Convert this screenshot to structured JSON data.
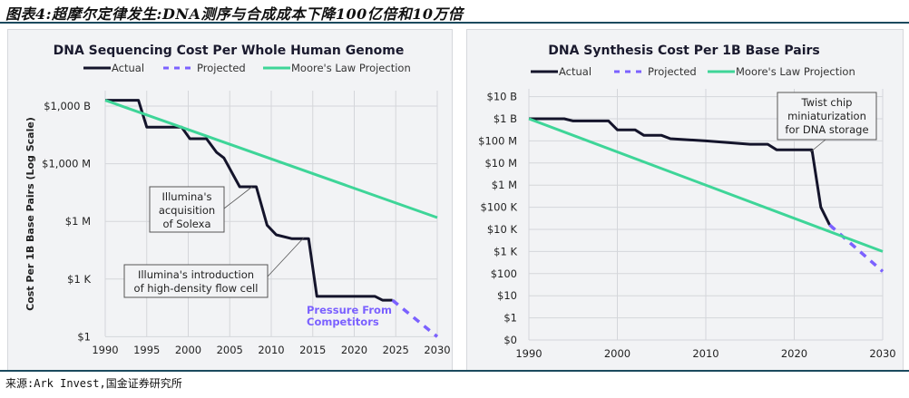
{
  "figure_title": "图表4:超摩尔定律发生:DNA测序与合成成本下降100亿倍和10万倍",
  "source": "来源:Ark Invest,国金证券研究所",
  "colors": {
    "actual": "#14142b",
    "projected": "#7b61ff",
    "moore": "#3ed598",
    "grid": "#d4d6da",
    "annotation_text": "#7b61ff"
  },
  "chart_data": [
    {
      "type": "line",
      "title": "DNA Sequencing Cost Per Whole Human Genome",
      "ylabel": "Cost Per 1B Base Pairs (Log Scale)",
      "xlabel": "",
      "y_scale": "log",
      "xlim": [
        1990,
        2030
      ],
      "ylim_log10": [
        0,
        12.4
      ],
      "x_ticks": [
        1990,
        1995,
        2000,
        2005,
        2010,
        2015,
        2020,
        2025,
        2030
      ],
      "y_ticks": [
        {
          "label": "$1,000 B",
          "log10": 12
        },
        {
          "label": "$1,000 M",
          "log10": 9
        },
        {
          "label": "$1 M",
          "log10": 6
        },
        {
          "label": "$1 K",
          "log10": 3
        },
        {
          "label": "$1",
          "log10": 0
        }
      ],
      "legend": {
        "placement": "top-center",
        "entries": [
          "Actual",
          "Projected",
          "Moore's Law Projection"
        ]
      },
      "grid": true,
      "series": [
        {
          "name": "Actual",
          "style": "solid",
          "points_log10": [
            [
              1990,
              12.3
            ],
            [
              1994,
              12.3
            ],
            [
              1995,
              10.9
            ],
            [
              1999.2,
              10.9
            ],
            [
              2000.2,
              10.3
            ],
            [
              2002.2,
              10.3
            ],
            [
              2003.4,
              9.6
            ],
            [
              2004.3,
              9.3
            ],
            [
              2006.2,
              7.8
            ],
            [
              2008.2,
              7.8
            ],
            [
              2009.5,
              5.8
            ],
            [
              2010.6,
              5.3
            ],
            [
              2012.5,
              5.1
            ],
            [
              2014.5,
              5.1
            ],
            [
              2015.5,
              2.1
            ],
            [
              2022.5,
              2.1
            ],
            [
              2023.4,
              1.9
            ],
            [
              2024.6,
              1.9
            ]
          ]
        },
        {
          "name": "Projected",
          "style": "dashed",
          "points_log10": [
            [
              2024.6,
              1.9
            ],
            [
              2030,
              0
            ]
          ]
        },
        {
          "name": "Moore's Law Projection",
          "style": "solid",
          "points_log10": [
            [
              1990,
              12.3
            ],
            [
              2030,
              6.2
            ]
          ]
        }
      ],
      "annotations": [
        {
          "text": [
            "Illumina's",
            "acquisition",
            "of Solexa"
          ],
          "target": [
            2008.2,
            7.8
          ]
        },
        {
          "text": [
            "Illumina's introduction",
            "of high-density flow cell"
          ],
          "target": [
            2014.5,
            5.1
          ]
        },
        {
          "text": [
            "Pressure From",
            "Competitors"
          ],
          "style": "colored"
        }
      ]
    },
    {
      "type": "line",
      "title": "DNA Synthesis Cost Per 1B Base Pairs",
      "y_scale": "log",
      "xlim": [
        1990,
        2030
      ],
      "x_ticks": [
        1990,
        2000,
        2010,
        2020,
        2030
      ],
      "y_ticks": [
        {
          "label": "$10 B",
          "log10": 10
        },
        {
          "label": "$1 B",
          "log10": 9
        },
        {
          "label": "$100 M",
          "log10": 8
        },
        {
          "label": "$10 M",
          "log10": 7
        },
        {
          "label": "$1 M",
          "log10": 6
        },
        {
          "label": "$100 K",
          "log10": 5
        },
        {
          "label": "$10 K",
          "log10": 4
        },
        {
          "label": "$1 K",
          "log10": 3
        },
        {
          "label": "$100",
          "log10": 2
        },
        {
          "label": "$10",
          "log10": 1
        },
        {
          "label": "$1",
          "log10": 0
        },
        {
          "label": "$0",
          "log10": -1
        }
      ],
      "legend": {
        "placement": "top-center",
        "entries": [
          "Actual",
          "Projected",
          "Moore's Law Projection"
        ]
      },
      "grid": true,
      "series": [
        {
          "name": "Actual",
          "style": "solid",
          "points_log10": [
            [
              1990,
              9
            ],
            [
              1994,
              9
            ],
            [
              1995,
              8.9
            ],
            [
              1999,
              8.9
            ],
            [
              2000,
              8.5
            ],
            [
              2002,
              8.5
            ],
            [
              2003,
              8.25
            ],
            [
              2005,
              8.25
            ],
            [
              2006,
              8.1
            ],
            [
              2010,
              8.0
            ],
            [
              2015,
              7.85
            ],
            [
              2017,
              7.85
            ],
            [
              2018,
              7.6
            ],
            [
              2022,
              7.6
            ],
            [
              2023,
              5.0
            ],
            [
              2024,
              4.2
            ]
          ]
        },
        {
          "name": "Projected",
          "style": "dashed",
          "points_log10": [
            [
              2024,
              4.2
            ],
            [
              2030,
              2.1
            ]
          ]
        },
        {
          "name": "Moore's Law Projection",
          "style": "solid",
          "points_log10": [
            [
              1990,
              9
            ],
            [
              2030,
              3
            ]
          ]
        }
      ],
      "annotations": [
        {
          "text": [
            "Twist chip",
            "miniaturization",
            "for DNA storage"
          ],
          "target": [
            2022,
            7.6
          ]
        }
      ]
    }
  ]
}
